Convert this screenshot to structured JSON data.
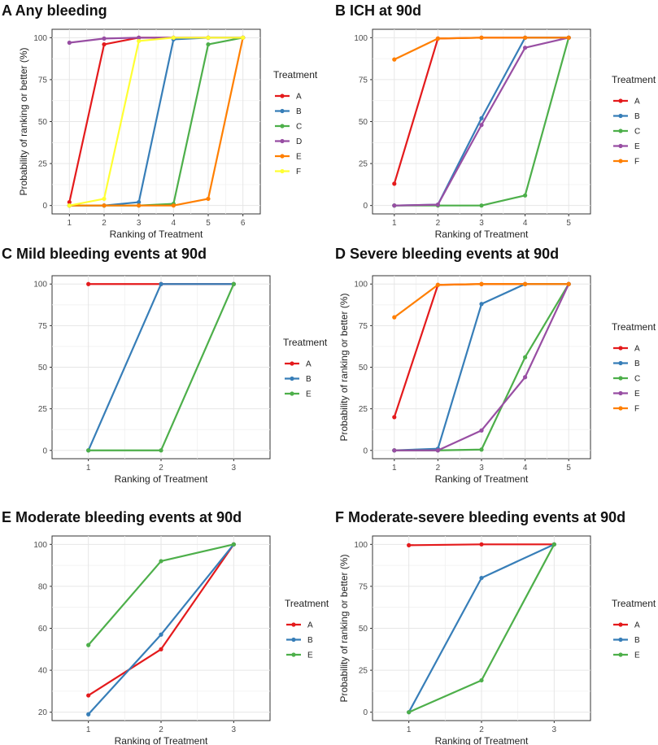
{
  "colors": {
    "A": "#e41a1c",
    "B": "#377eb8",
    "C": "#4daf4a",
    "D": "#984ea3",
    "E": "#ff7f00",
    "F": "#ffff33"
  },
  "panel_color_overrides": {
    "B": {
      "E": "#984ea3",
      "F": "#ff7f00"
    },
    "C": {
      "E": "#4daf4a"
    },
    "D": {
      "E": "#984ea3",
      "F": "#ff7f00"
    },
    "E": {
      "E": "#4daf4a"
    },
    "F": {
      "E": "#4daf4a"
    }
  },
  "chart_data": [
    {
      "id": "A",
      "type": "line",
      "title": "A Any bleeding",
      "xlabel": "Ranking of Treatment",
      "ylabel": "Probability of ranking or better (%)",
      "x": [
        1,
        2,
        3,
        4,
        5,
        6
      ],
      "xlim": [
        0.5,
        6.5
      ],
      "ylim": [
        -5,
        105
      ],
      "yticks": [
        0,
        25,
        50,
        75,
        100
      ],
      "legend_title": "Treatment",
      "series": [
        {
          "name": "A",
          "values": [
            2,
            96,
            100,
            100,
            100,
            100
          ]
        },
        {
          "name": "B",
          "values": [
            0,
            0,
            2,
            99,
            100,
            100
          ]
        },
        {
          "name": "C",
          "values": [
            0,
            0,
            0,
            1,
            96,
            100
          ]
        },
        {
          "name": "D",
          "values": [
            97,
            99.5,
            100,
            100,
            100,
            100
          ]
        },
        {
          "name": "E",
          "values": [
            0,
            0,
            0,
            0,
            4,
            100
          ]
        },
        {
          "name": "F",
          "values": [
            0,
            4,
            98,
            100,
            100,
            100
          ]
        }
      ]
    },
    {
      "id": "B",
      "type": "line",
      "title": "B ICH at 90d",
      "xlabel": "Ranking of Treatment",
      "ylabel": "",
      "x": [
        1,
        2,
        3,
        4,
        5
      ],
      "xlim": [
        0.5,
        5.5
      ],
      "ylim": [
        -5,
        105
      ],
      "yticks": [
        0,
        25,
        50,
        75,
        100
      ],
      "legend_title": "Treatment",
      "series": [
        {
          "name": "A",
          "values": [
            13,
            99.5,
            100,
            100,
            100
          ]
        },
        {
          "name": "B",
          "values": [
            0,
            0.5,
            52,
            100,
            100
          ]
        },
        {
          "name": "C",
          "values": [
            0,
            0,
            0,
            6,
            100
          ]
        },
        {
          "name": "E",
          "values": [
            0,
            0.5,
            48,
            94,
            100
          ]
        },
        {
          "name": "F",
          "values": [
            87,
            99.5,
            100,
            100,
            100
          ]
        }
      ]
    },
    {
      "id": "C",
      "type": "line",
      "title": "C Mild bleeding events at 90d",
      "xlabel": "Ranking of Treatment",
      "ylabel": "",
      "x": [
        1,
        2,
        3
      ],
      "xlim": [
        0.5,
        3.5
      ],
      "ylim": [
        -5,
        105
      ],
      "yticks": [
        0,
        25,
        50,
        75,
        100
      ],
      "legend_title": "Treatment",
      "series": [
        {
          "name": "A",
          "values": [
            100,
            100,
            100
          ]
        },
        {
          "name": "B",
          "values": [
            0,
            100,
            100
          ]
        },
        {
          "name": "E",
          "values": [
            0,
            0,
            100
          ]
        }
      ]
    },
    {
      "id": "D",
      "type": "line",
      "title": "D Severe bleeding events at 90d",
      "xlabel": "Ranking of Treatment",
      "ylabel": "Probability of ranking or better (%)",
      "x": [
        1,
        2,
        3,
        4,
        5
      ],
      "xlim": [
        0.5,
        5.5
      ],
      "ylim": [
        -5,
        105
      ],
      "yticks": [
        0,
        25,
        50,
        75,
        100
      ],
      "legend_title": "Treatment",
      "series": [
        {
          "name": "A",
          "values": [
            20,
            99.5,
            100,
            100,
            100
          ]
        },
        {
          "name": "B",
          "values": [
            0,
            1,
            88,
            100,
            100
          ]
        },
        {
          "name": "C",
          "values": [
            0,
            0,
            0.5,
            56,
            100
          ]
        },
        {
          "name": "E",
          "values": [
            0,
            0,
            12,
            44,
            100
          ]
        },
        {
          "name": "F",
          "values": [
            80,
            99.5,
            100,
            100,
            100
          ]
        }
      ]
    },
    {
      "id": "E",
      "type": "line",
      "title": "E Moderate bleeding events at 90d",
      "xlabel": "Ranking of Treatment",
      "ylabel": "",
      "x": [
        1,
        2,
        3
      ],
      "xlim": [
        0.5,
        3.5
      ],
      "ylim": [
        16,
        104
      ],
      "yticks": [
        20,
        40,
        60,
        80,
        100
      ],
      "legend_title": "Treatment",
      "series": [
        {
          "name": "A",
          "values": [
            28,
            50,
            100
          ]
        },
        {
          "name": "B",
          "values": [
            19,
            57,
            100
          ]
        },
        {
          "name": "E",
          "values": [
            52,
            92,
            100
          ]
        }
      ]
    },
    {
      "id": "F",
      "type": "line",
      "title": "F Moderate-severe bleeding events at 90d",
      "xlabel": "Ranking of Treatment",
      "ylabel": "Probability of ranking or better (%)",
      "x": [
        1,
        2,
        3
      ],
      "xlim": [
        0.5,
        3.5
      ],
      "ylim": [
        -5,
        105
      ],
      "yticks": [
        0,
        25,
        50,
        75,
        100
      ],
      "legend_title": "Treatment",
      "series": [
        {
          "name": "A",
          "values": [
            99.5,
            100,
            100
          ]
        },
        {
          "name": "B",
          "values": [
            0,
            80,
            100
          ]
        },
        {
          "name": "E",
          "values": [
            0,
            19,
            100
          ]
        }
      ]
    }
  ]
}
